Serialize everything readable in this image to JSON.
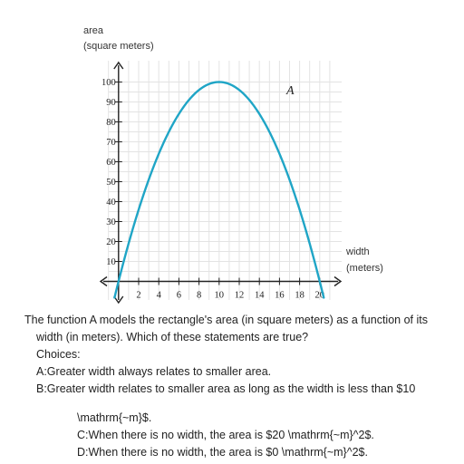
{
  "chart_data": {
    "type": "line",
    "ylabel": [
      "area",
      "(square meters)"
    ],
    "xlabel": [
      "width",
      "(meters)"
    ],
    "xlim": [
      -1,
      21
    ],
    "ylim": [
      -2,
      103
    ],
    "x_ticks": [
      2,
      4,
      6,
      8,
      10,
      12,
      14,
      16,
      18,
      20
    ],
    "y_ticks": [
      10,
      20,
      30,
      40,
      50,
      60,
      70,
      80,
      90,
      100
    ],
    "grid": true,
    "series": [
      {
        "label": "A",
        "color": "#1fa5c6",
        "x": [
          0,
          1,
          2,
          3,
          4,
          5,
          6,
          7,
          8,
          9,
          10,
          11,
          12,
          13,
          14,
          15,
          16,
          17,
          18,
          19,
          20
        ],
        "y": [
          0,
          19,
          36,
          51,
          64,
          75,
          84,
          91,
          96,
          99,
          100,
          99,
          96,
          91,
          84,
          75,
          64,
          51,
          36,
          19,
          0
        ]
      }
    ]
  },
  "question": {
    "text": "The function A models the rectangle's area (in square meters) as a function of its",
    "text_cont": "width (in meters). Which of these statements are true?",
    "choices_label": "Choices:",
    "choice_a": "A:Greater width always relates to smaller area.",
    "choice_b": "B:Greater width relates to smaller area as long as the width is less than $10",
    "choice_b_cont": "\\mathrm{~m}$.",
    "choice_c": "C:When there is no width, the area is $20 \\mathrm{~m}^2$.",
    "choice_d": "D:When there is no width, the area is $0 \\mathrm{~m}^2$."
  }
}
